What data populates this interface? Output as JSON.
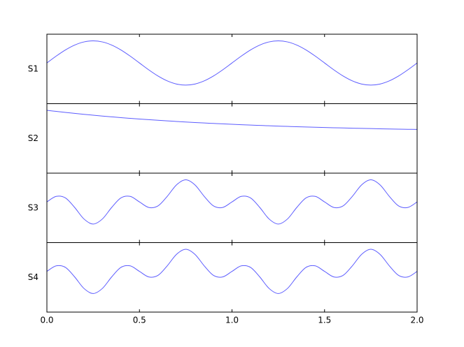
{
  "chart_data": {
    "type": "line",
    "subplots": true,
    "x": [
      0,
      0.05,
      0.1,
      0.15,
      0.2,
      0.25,
      0.3,
      0.35,
      0.4,
      0.45,
      0.5,
      0.55,
      0.6,
      0.65,
      0.7,
      0.75,
      0.8,
      0.85,
      0.9,
      0.95,
      1,
      1.05,
      1.1,
      1.15,
      1.2,
      1.25,
      1.3,
      1.35,
      1.4,
      1.45,
      1.5,
      1.55,
      1.6,
      1.65,
      1.7,
      1.75,
      1.8,
      1.85,
      1.9,
      1.95,
      2
    ],
    "xlim": [
      0,
      2
    ],
    "xticks": [
      {
        "value": 0,
        "label": "0.0"
      },
      {
        "value": 0.5,
        "label": "0.5"
      },
      {
        "value": 1,
        "label": "1.0"
      },
      {
        "value": 1.5,
        "label": "1.5"
      },
      {
        "value": 2,
        "label": "2.0"
      }
    ],
    "ylim": [
      -1.84,
      1.3
    ],
    "series": [
      {
        "name": "S1",
        "color": "#5c5cff",
        "values": [
          0,
          0.309,
          0.588,
          0.809,
          0.951,
          1,
          0.951,
          0.809,
          0.588,
          0.309,
          0,
          -0.309,
          -0.588,
          -0.809,
          -0.951,
          -1,
          -0.951,
          -0.809,
          -0.588,
          -0.309,
          0,
          0.309,
          0.588,
          0.809,
          0.951,
          1,
          0.951,
          0.809,
          0.588,
          0.309,
          0,
          -0.309,
          -0.588,
          -0.809,
          -0.951,
          -1,
          -0.951,
          -0.809,
          -0.588,
          -0.309,
          0
        ]
      },
      {
        "name": "S2",
        "color": "#5c5cff",
        "values": [
          1,
          0.951,
          0.905,
          0.861,
          0.819,
          0.779,
          0.741,
          0.705,
          0.67,
          0.638,
          0.607,
          0.577,
          0.549,
          0.522,
          0.497,
          0.472,
          0.449,
          0.427,
          0.407,
          0.387,
          0.368,
          0.35,
          0.333,
          0.317,
          0.301,
          0.287,
          0.273,
          0.259,
          0.247,
          0.235,
          0.223,
          0.212,
          0.202,
          0.192,
          0.183,
          0.174,
          0.165,
          0.157,
          0.15,
          0.142,
          0.135
        ]
      },
      {
        "name": "S3",
        "color": "#5c5cff",
        "values": [
          0,
          0.25,
          0.182,
          -0.25,
          -0.769,
          -1,
          -0.769,
          -0.25,
          0.182,
          0.25,
          0,
          -0.25,
          -0.182,
          0.25,
          0.769,
          1,
          0.769,
          0.25,
          -0.182,
          -0.25,
          0,
          0.25,
          0.182,
          -0.25,
          -0.769,
          -1,
          -0.769,
          -0.25,
          0.182,
          0.25,
          0,
          -0.25,
          -0.182,
          0.25,
          0.769,
          1,
          0.769,
          0.25,
          -0.182,
          -0.25,
          0
        ]
      },
      {
        "name": "S4",
        "color": "#5c5cff",
        "values": [
          0,
          0.25,
          0.182,
          -0.25,
          -0.769,
          -1,
          -0.769,
          -0.25,
          0.182,
          0.25,
          0,
          -0.25,
          -0.182,
          0.25,
          0.769,
          1,
          0.769,
          0.25,
          -0.182,
          -0.25,
          0,
          0.25,
          0.182,
          -0.25,
          -0.769,
          -1,
          -0.769,
          -0.25,
          0.182,
          0.25,
          0,
          -0.25,
          -0.182,
          0.25,
          0.769,
          1,
          0.769,
          0.25,
          -0.182,
          -0.25,
          0
        ]
      }
    ]
  }
}
